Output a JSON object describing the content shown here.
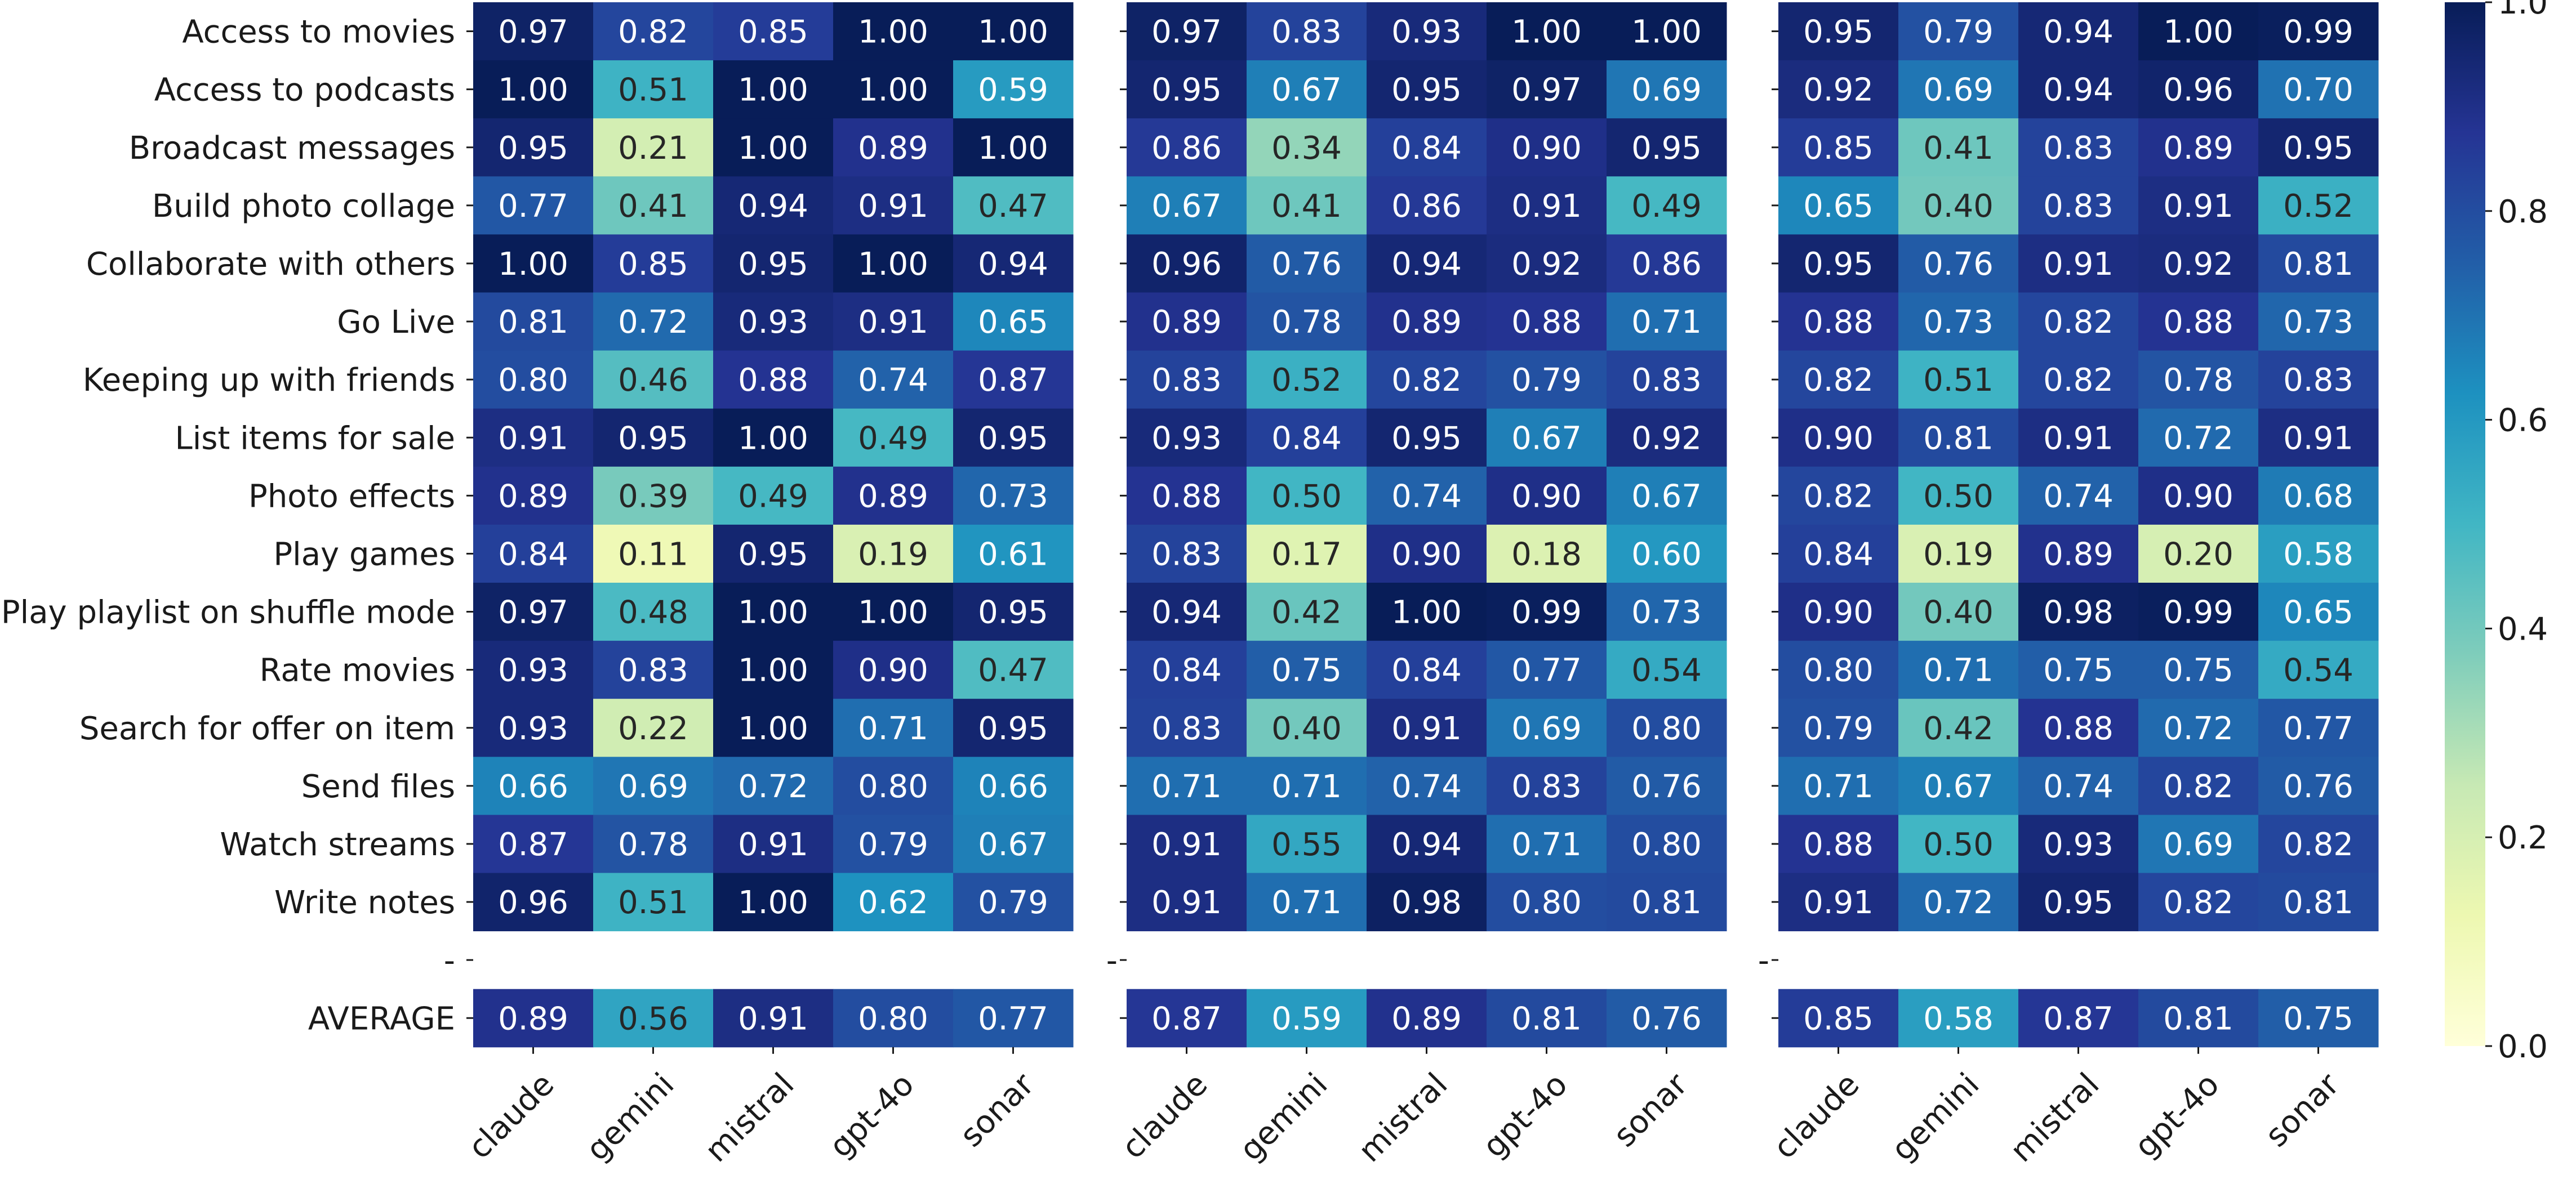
{
  "chart_data": {
    "type": "heatmap",
    "colormap": "YlGnBu",
    "vmin": 0.0,
    "vmax": 1.0,
    "rows": [
      "Access to movies",
      "Access to podcasts",
      "Broadcast messages",
      "Build photo collage",
      "Collaborate with others",
      "Go Live",
      "Keeping up with friends",
      "List items for sale",
      "Photo effects",
      "Play games",
      "Play playlist on shuffle mode",
      "Rate movies",
      "Search for offer on item",
      "Send files",
      "Watch streams",
      "Write notes"
    ],
    "separator_label": "-",
    "average_label": "AVERAGE",
    "columns": [
      "claude",
      "gemini",
      "mistral",
      "gpt-4o",
      "sonar"
    ],
    "panels": [
      {
        "values": [
          [
            0.97,
            0.82,
            0.85,
            1.0,
            1.0
          ],
          [
            1.0,
            0.51,
            1.0,
            1.0,
            0.59
          ],
          [
            0.95,
            0.21,
            1.0,
            0.89,
            1.0
          ],
          [
            0.77,
            0.41,
            0.94,
            0.91,
            0.47
          ],
          [
            1.0,
            0.85,
            0.95,
            1.0,
            0.94
          ],
          [
            0.81,
            0.72,
            0.93,
            0.91,
            0.65
          ],
          [
            0.8,
            0.46,
            0.88,
            0.74,
            0.87
          ],
          [
            0.91,
            0.95,
            1.0,
            0.49,
            0.95
          ],
          [
            0.89,
            0.39,
            0.49,
            0.89,
            0.73
          ],
          [
            0.84,
            0.11,
            0.95,
            0.19,
            0.61
          ],
          [
            0.97,
            0.48,
            1.0,
            1.0,
            0.95
          ],
          [
            0.93,
            0.83,
            1.0,
            0.9,
            0.47
          ],
          [
            0.93,
            0.22,
            1.0,
            0.71,
            0.95
          ],
          [
            0.66,
            0.69,
            0.72,
            0.8,
            0.66
          ],
          [
            0.87,
            0.78,
            0.91,
            0.79,
            0.67
          ],
          [
            0.96,
            0.51,
            1.0,
            0.62,
            0.79
          ]
        ],
        "average": [
          0.89,
          0.56,
          0.91,
          0.8,
          0.77
        ]
      },
      {
        "values": [
          [
            0.97,
            0.83,
            0.93,
            1.0,
            1.0
          ],
          [
            0.95,
            0.67,
            0.95,
            0.97,
            0.69
          ],
          [
            0.86,
            0.34,
            0.84,
            0.9,
            0.95
          ],
          [
            0.67,
            0.41,
            0.86,
            0.91,
            0.49
          ],
          [
            0.96,
            0.76,
            0.94,
            0.92,
            0.86
          ],
          [
            0.89,
            0.78,
            0.89,
            0.88,
            0.71
          ],
          [
            0.83,
            0.52,
            0.82,
            0.79,
            0.83
          ],
          [
            0.93,
            0.84,
            0.95,
            0.67,
            0.92
          ],
          [
            0.88,
            0.5,
            0.74,
            0.9,
            0.67
          ],
          [
            0.83,
            0.17,
            0.9,
            0.18,
            0.6
          ],
          [
            0.94,
            0.42,
            1.0,
            0.99,
            0.73
          ],
          [
            0.84,
            0.75,
            0.84,
            0.77,
            0.54
          ],
          [
            0.83,
            0.4,
            0.91,
            0.69,
            0.8
          ],
          [
            0.71,
            0.71,
            0.74,
            0.83,
            0.76
          ],
          [
            0.91,
            0.55,
            0.94,
            0.71,
            0.8
          ],
          [
            0.91,
            0.71,
            0.98,
            0.8,
            0.81
          ]
        ],
        "average": [
          0.87,
          0.59,
          0.89,
          0.81,
          0.76
        ]
      },
      {
        "values": [
          [
            0.95,
            0.79,
            0.94,
            1.0,
            0.99
          ],
          [
            0.92,
            0.69,
            0.94,
            0.96,
            0.7
          ],
          [
            0.85,
            0.41,
            0.83,
            0.89,
            0.95
          ],
          [
            0.65,
            0.4,
            0.83,
            0.91,
            0.52
          ],
          [
            0.95,
            0.76,
            0.91,
            0.92,
            0.81
          ],
          [
            0.88,
            0.73,
            0.82,
            0.88,
            0.73
          ],
          [
            0.82,
            0.51,
            0.82,
            0.78,
            0.83
          ],
          [
            0.9,
            0.81,
            0.91,
            0.72,
            0.91
          ],
          [
            0.82,
            0.5,
            0.74,
            0.9,
            0.68
          ],
          [
            0.84,
            0.19,
            0.89,
            0.2,
            0.58
          ],
          [
            0.9,
            0.4,
            0.98,
            0.99,
            0.65
          ],
          [
            0.8,
            0.71,
            0.75,
            0.75,
            0.54
          ],
          [
            0.79,
            0.42,
            0.88,
            0.72,
            0.77
          ],
          [
            0.71,
            0.67,
            0.74,
            0.82,
            0.76
          ],
          [
            0.88,
            0.5,
            0.93,
            0.69,
            0.82
          ],
          [
            0.91,
            0.72,
            0.95,
            0.82,
            0.81
          ]
        ],
        "average": [
          0.85,
          0.58,
          0.87,
          0.81,
          0.75
        ]
      }
    ],
    "colorbar_ticks": [
      "0.0",
      "0.2",
      "0.4",
      "0.6",
      "0.8",
      "1.0"
    ]
  }
}
